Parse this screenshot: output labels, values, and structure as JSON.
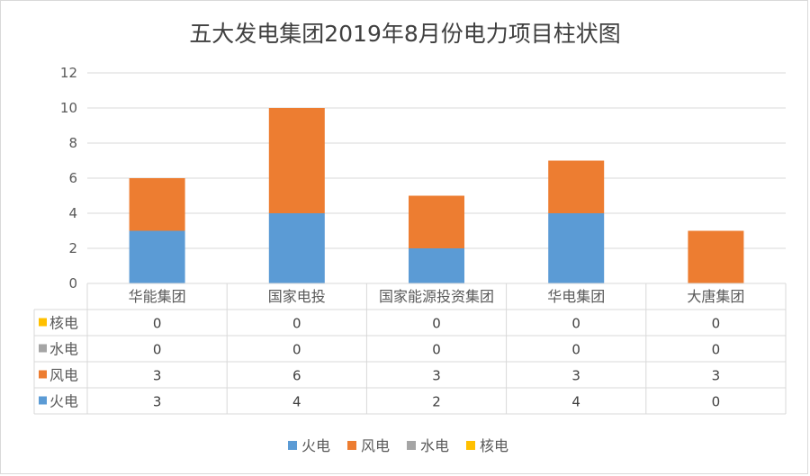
{
  "chart_data": {
    "type": "bar",
    "stacked": true,
    "title": "五大发电集团2019年8月份电力项目柱状图",
    "categories": [
      "华能集团",
      "国家电投",
      "国家能源投资集团",
      "华电集团",
      "大唐集团"
    ],
    "series": [
      {
        "name": "火电",
        "color": "#5b9bd5",
        "values": [
          3,
          4,
          2,
          4,
          0
        ]
      },
      {
        "name": "风电",
        "color": "#ed7d31",
        "values": [
          3,
          6,
          3,
          3,
          3
        ]
      },
      {
        "name": "水电",
        "color": "#a5a5a5",
        "values": [
          0,
          0,
          0,
          0,
          0
        ]
      },
      {
        "name": "核电",
        "color": "#ffc000",
        "values": [
          0,
          0,
          0,
          0,
          0
        ]
      }
    ],
    "ylim": [
      0,
      12
    ],
    "yticks": [
      0,
      2,
      4,
      6,
      8,
      10,
      12
    ],
    "grid": true,
    "data_table": true,
    "legend_position": "bottom"
  }
}
